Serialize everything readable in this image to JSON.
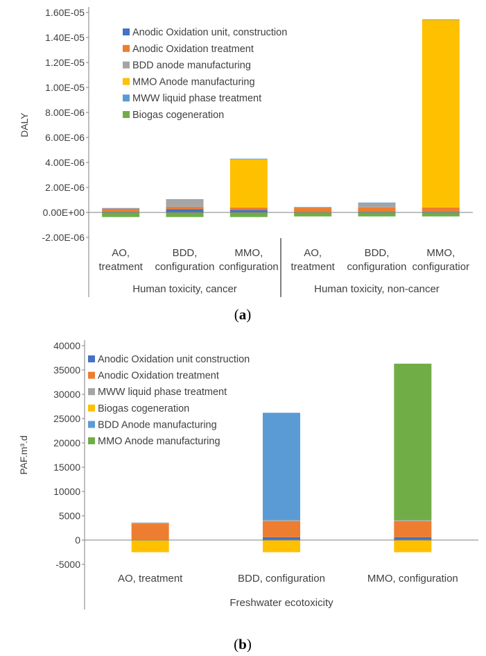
{
  "chart_data": [
    {
      "type": "bar",
      "stacked": true,
      "panel_label": "a",
      "ylabel": "DALY",
      "ylim": [
        -2e-06,
        1.6e-05
      ],
      "y_ticks": [
        "-2.00E-06",
        "0.00E+00",
        "2.00E-06",
        "4.00E-06",
        "6.00E-06",
        "8.00E-06",
        "1.00E-05",
        "1.20E-05",
        "1.40E-05",
        "1.60E-05"
      ],
      "y_tick_values": [
        -2e-06,
        0,
        2e-06,
        4e-06,
        6e-06,
        8e-06,
        1e-05,
        1.2e-05,
        1.4e-05,
        1.6e-05
      ],
      "categories": [
        [
          "AO,",
          "treatment"
        ],
        [
          "BDD,",
          "configuration"
        ],
        [
          "MMO,",
          "configuration"
        ],
        [
          "AO,",
          "treatment"
        ],
        [
          "BDD,",
          "configuration"
        ],
        [
          "MMO,",
          "configuratior"
        ]
      ],
      "groups": [
        {
          "label": "Human toxicity, cancer",
          "span": [
            0,
            2
          ]
        },
        {
          "label": "Human toxicity, non-cancer",
          "span": [
            3,
            5
          ]
        }
      ],
      "legend_position": "top-left",
      "grid": false,
      "series": [
        {
          "name": "Anodic Oxidation unit, construction",
          "color": "#4472C4",
          "values": [
            5e-08,
            2.5e-07,
            2e-07,
            3e-08,
            5e-08,
            5e-08
          ]
        },
        {
          "name": "Anodic Oxidation treatment",
          "color": "#ED7D31",
          "values": [
            2.5e-07,
            2e-07,
            2e-07,
            3.5e-07,
            3.5e-07,
            3.5e-07
          ]
        },
        {
          "name": "BDD anode manufacturing",
          "color": "#A5A5A5",
          "values": [
            0,
            5.5e-07,
            0,
            0,
            3.4e-07,
            0
          ]
        },
        {
          "name": "MMO Anode manufacturing",
          "color": "#FFC000",
          "values": [
            0,
            0,
            3.85e-06,
            0,
            0,
            1.5e-05
          ]
        },
        {
          "name": "MWW liquid phase treatment",
          "color": "#5B9BD5",
          "values": [
            5e-08,
            5e-08,
            5e-08,
            5e-08,
            5e-08,
            5e-08
          ]
        },
        {
          "name": "Biogas cogeneration",
          "color": "#70AD47",
          "values": [
            -3.7e-07,
            -3.7e-07,
            -3.7e-07,
            -3.2e-07,
            -3.2e-07,
            -3.2e-07
          ]
        }
      ]
    },
    {
      "type": "bar",
      "stacked": true,
      "panel_label": "b",
      "ylabel": "PAF.m³.d",
      "ylim": [
        -5000,
        40000
      ],
      "y_ticks": [
        "-5000",
        "0",
        "5000",
        "10000",
        "15000",
        "20000",
        "25000",
        "30000",
        "35000",
        "40000"
      ],
      "y_tick_values": [
        -5000,
        0,
        5000,
        10000,
        15000,
        20000,
        25000,
        30000,
        35000,
        40000
      ],
      "categories": [
        [
          "AO, treatment"
        ],
        [
          "BDD, configuration"
        ],
        [
          "MMO, configuration"
        ]
      ],
      "groups": [
        {
          "label": "Freshwater ecotoxicity",
          "span": [
            0,
            2
          ]
        }
      ],
      "legend_position": "top-left",
      "grid": false,
      "series": [
        {
          "name": "Anodic Oxidation unit construction",
          "color": "#4472C4",
          "values": [
            100,
            600,
            600
          ]
        },
        {
          "name": "Anodic Oxidation treatment",
          "color": "#ED7D31",
          "values": [
            3300,
            3300,
            3300
          ]
        },
        {
          "name": "MWW liquid phase treatment",
          "color": "#A5A5A5",
          "values": [
            200,
            200,
            200
          ]
        },
        {
          "name": "Biogas cogeneration",
          "color": "#FFC000",
          "values": [
            -2500,
            -2500,
            -2500
          ]
        },
        {
          "name": "BDD Anode manufacturing",
          "color": "#5B9BD5",
          "values": [
            0,
            22100,
            0
          ]
        },
        {
          "name": "MMO Anode manufacturing",
          "color": "#70AD47",
          "values": [
            0,
            0,
            32200
          ]
        }
      ]
    }
  ]
}
